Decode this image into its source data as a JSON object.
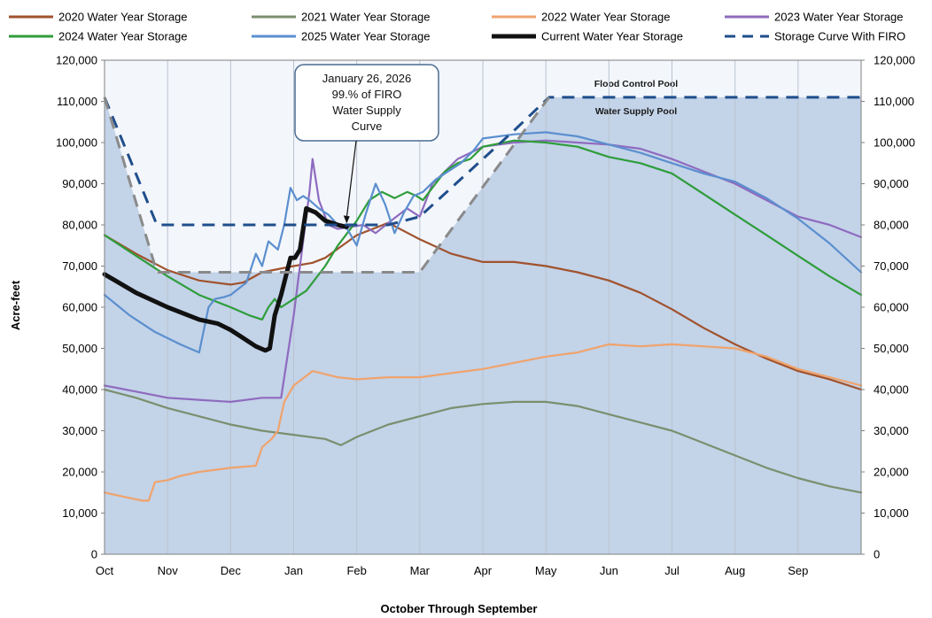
{
  "chart_data": {
    "type": "line",
    "xlabel": "October Through September",
    "ylabel": "Acre-feet",
    "ylim": [
      0,
      120000
    ],
    "yticks": [
      0,
      10000,
      20000,
      30000,
      40000,
      50000,
      60000,
      70000,
      80000,
      90000,
      100000,
      110000,
      120000
    ],
    "ytick_labels": [
      "0",
      "10,000",
      "20,000",
      "30,000",
      "40,000",
      "50,000",
      "60,000",
      "70,000",
      "80,000",
      "90,000",
      "100,000",
      "110,000",
      "120,000"
    ],
    "xlim": [
      0,
      12
    ],
    "x_ticks": [
      {
        "label": "Oct",
        "x": 0
      },
      {
        "label": "Nov",
        "x": 1
      },
      {
        "label": "Dec",
        "x": 2
      },
      {
        "label": "Jan",
        "x": 3
      },
      {
        "label": "Feb",
        "x": 4
      },
      {
        "label": "Mar",
        "x": 5
      },
      {
        "label": "Apr",
        "x": 6
      },
      {
        "label": "May",
        "x": 7
      },
      {
        "label": "Jun",
        "x": 8
      },
      {
        "label": "Jul",
        "x": 9
      },
      {
        "label": "Aug",
        "x": 10
      },
      {
        "label": "Sep",
        "x": 11
      }
    ],
    "grid": "vertical",
    "legend_position": "top",
    "annotation": {
      "lines": [
        "January 26, 2026",
        "99.% of FIRO",
        "Water Supply",
        "Curve"
      ],
      "x": 3.84,
      "y": 79500
    },
    "regions": [
      {
        "name": "Flood Control Pool",
        "label": "Flood Control Pool",
        "color": "#f3f6fb"
      },
      {
        "name": "Water Supply Pool",
        "label": "Water Supply Pool",
        "color": "#c3d3e8"
      }
    ],
    "water_supply_pool": {
      "x": [
        0,
        0.83,
        5.0,
        7.05,
        12
      ],
      "y": [
        111000,
        68500,
        68500,
        111000,
        111000
      ]
    },
    "series": [
      {
        "name": "2020 Water Year Storage",
        "color": "#a0522d",
        "style": "solid",
        "width": 2.2,
        "x": [
          0,
          0.5,
          1,
          1.5,
          2,
          2.2,
          2.5,
          3,
          3.3,
          3.5,
          4,
          4.5,
          5,
          5.5,
          6,
          6.5,
          7,
          7.5,
          8,
          8.5,
          9,
          9.5,
          10,
          10.5,
          11,
          11.5,
          12
        ],
        "y": [
          77500,
          73000,
          69000,
          66500,
          65500,
          66000,
          68500,
          70000,
          70800,
          72000,
          77500,
          80500,
          76500,
          73000,
          71000,
          71000,
          70000,
          68500,
          66500,
          63500,
          59500,
          55000,
          51000,
          47500,
          44500,
          42500,
          40000
        ]
      },
      {
        "name": "2021 Water Year Storage",
        "color": "#7a8f6e",
        "style": "solid",
        "width": 2.2,
        "x": [
          0,
          0.5,
          1,
          1.5,
          2,
          2.5,
          3,
          3.5,
          3.75,
          4,
          4.5,
          5,
          5.5,
          6,
          6.5,
          7,
          7.5,
          8,
          8.5,
          9,
          9.5,
          10,
          10.5,
          11,
          11.5,
          12
        ],
        "y": [
          40000,
          38000,
          35500,
          33500,
          31500,
          30000,
          29000,
          28000,
          26500,
          28500,
          31500,
          33500,
          35500,
          36500,
          37000,
          37000,
          36000,
          34000,
          32000,
          30000,
          27000,
          24000,
          21000,
          18500,
          16500,
          15000
        ]
      },
      {
        "name": "2022 Water Year Storage",
        "color": "#f0a36c",
        "style": "solid",
        "width": 2.2,
        "x": [
          0,
          0.3,
          0.6,
          0.7,
          0.8,
          1.0,
          1.2,
          1.5,
          2,
          2.4,
          2.5,
          2.65,
          2.75,
          2.85,
          3,
          3.3,
          3.7,
          4,
          4.5,
          5,
          5.5,
          6,
          6.5,
          7,
          7.5,
          8,
          8.5,
          9,
          9.5,
          10,
          10.5,
          11,
          11.5,
          12
        ],
        "y": [
          15000,
          14000,
          13000,
          13000,
          17500,
          18000,
          19000,
          20000,
          21000,
          21500,
          26000,
          28000,
          30000,
          37000,
          41000,
          44500,
          43000,
          42500,
          43000,
          43000,
          44000,
          45000,
          46500,
          48000,
          49000,
          51000,
          50500,
          51000,
          50500,
          50000,
          48000,
          45000,
          43000,
          41000
        ]
      },
      {
        "name": "2023 Water Year Storage",
        "color": "#8e6bbf",
        "style": "solid",
        "width": 2.2,
        "x": [
          0,
          0.5,
          1,
          1.5,
          2,
          2.5,
          2.8,
          2.9,
          3.0,
          3.1,
          3.25,
          3.3,
          3.4,
          3.55,
          3.7,
          3.9,
          4.1,
          4.3,
          4.5,
          4.8,
          5.0,
          5.2,
          5.4,
          5.6,
          6,
          6.5,
          7,
          7.5,
          8,
          8.5,
          9,
          9.5,
          10,
          10.5,
          11,
          11.5,
          12
        ],
        "y": [
          41000,
          39500,
          38000,
          37500,
          37000,
          38000,
          38000,
          48000,
          58000,
          70000,
          88000,
          96000,
          86000,
          80000,
          79000,
          79500,
          80000,
          78000,
          80500,
          84000,
          82000,
          90000,
          93000,
          96000,
          99000,
          100000,
          100500,
          100000,
          99500,
          98500,
          96000,
          93000,
          90000,
          86000,
          82000,
          80000,
          77000
        ]
      },
      {
        "name": "2024 Water Year Storage",
        "color": "#2e9d3a",
        "style": "solid",
        "width": 2.2,
        "x": [
          0,
          0.5,
          1,
          1.5,
          2,
          2.3,
          2.5,
          2.6,
          2.7,
          2.8,
          3.0,
          3.2,
          3.5,
          3.7,
          3.85,
          4.0,
          4.2,
          4.4,
          4.6,
          4.8,
          4.95,
          5.05,
          5.2,
          5.4,
          5.6,
          5.8,
          6,
          6.5,
          7,
          7.5,
          8,
          8.5,
          9,
          9.5,
          10,
          10.5,
          11,
          11.5,
          12
        ],
        "y": [
          77500,
          72500,
          67500,
          63000,
          60000,
          58000,
          57000,
          60000,
          62000,
          60000,
          62000,
          64000,
          70000,
          75000,
          78000,
          81000,
          86000,
          88000,
          86500,
          88000,
          87000,
          86000,
          89000,
          93000,
          95000,
          96000,
          99000,
          100500,
          100000,
          99000,
          96500,
          95000,
          92500,
          87500,
          82500,
          77500,
          72500,
          67500,
          63000
        ]
      },
      {
        "name": "2025 Water Year Storage",
        "color": "#5b8fcf",
        "style": "solid",
        "width": 2.2,
        "x": [
          0,
          0.4,
          0.8,
          1.2,
          1.5,
          1.65,
          1.75,
          1.9,
          2.0,
          2.25,
          2.4,
          2.5,
          2.6,
          2.75,
          2.85,
          2.95,
          3.05,
          3.15,
          3.25,
          3.4,
          3.55,
          3.7,
          3.85,
          4.0,
          4.15,
          4.3,
          4.45,
          4.6,
          4.75,
          4.9,
          5.05,
          5.25,
          5.45,
          5.65,
          5.85,
          6.0,
          6.5,
          7,
          7.5,
          8,
          8.5,
          9,
          9.5,
          10,
          10.5,
          11,
          11.5,
          12
        ],
        "y": [
          63000,
          58000,
          54000,
          51000,
          49000,
          60000,
          62000,
          62500,
          63000,
          66000,
          73000,
          70000,
          76000,
          74000,
          80000,
          89000,
          86000,
          87000,
          86000,
          84000,
          82500,
          80000,
          79000,
          75000,
          83000,
          90000,
          85000,
          78000,
          83000,
          87000,
          88000,
          91000,
          93000,
          95000,
          98000,
          101000,
          102000,
          102500,
          101500,
          99500,
          97500,
          95000,
          92500,
          90500,
          86500,
          81500,
          75500,
          68500
        ]
      },
      {
        "name": "Current Water Year Storage",
        "color": "#111111",
        "style": "solid",
        "width": 5,
        "x": [
          0,
          0.5,
          1,
          1.5,
          1.8,
          2.0,
          2.2,
          2.4,
          2.55,
          2.62,
          2.7,
          2.8,
          2.95,
          3.02,
          3.1,
          3.2,
          3.35,
          3.5,
          3.7,
          3.84
        ],
        "y": [
          68000,
          63500,
          60000,
          57000,
          56000,
          54500,
          52500,
          50500,
          49500,
          50000,
          58000,
          63000,
          72000,
          72000,
          74000,
          84000,
          83000,
          81000,
          80000,
          79500
        ]
      },
      {
        "name": "Storage Curve With FIRO",
        "color": "#1f4e8c",
        "style": "dashed",
        "width": 3,
        "x": [
          0,
          0.83,
          2.0,
          3.0,
          4.0,
          4.5,
          5.0,
          5.5,
          6.0,
          6.5,
          7.05,
          8,
          9,
          10,
          11,
          12
        ],
        "y": [
          111000,
          80000,
          80000,
          80000,
          80000,
          80000,
          82000,
          89000,
          96000,
          103000,
          111000,
          111000,
          111000,
          111000,
          111000,
          111000
        ]
      },
      {
        "name": "",
        "color": "#8a8a8a",
        "style": "dashed",
        "width": 3,
        "x": [
          0,
          0.83,
          5.0,
          7.05
        ],
        "y": [
          111000,
          68500,
          68500,
          111000
        ]
      }
    ]
  }
}
